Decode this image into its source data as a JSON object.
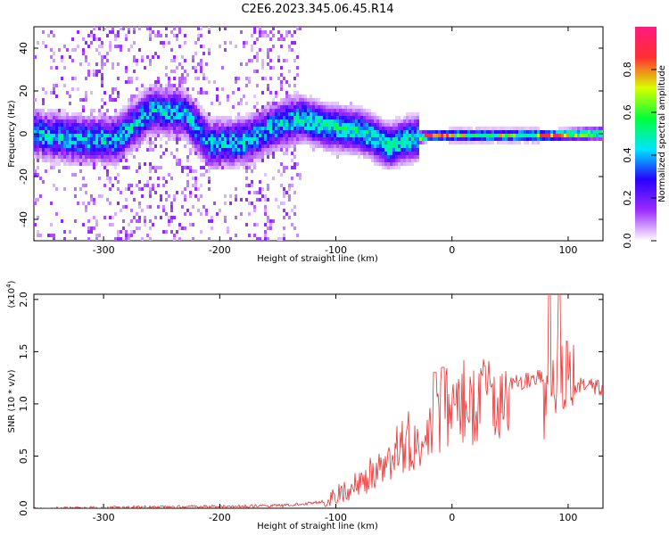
{
  "title": "C2E6.2023.345.06.45.R14",
  "chart_data": [
    {
      "type": "heatmap",
      "xlabel": "Height of straight line (km)",
      "ylabel": "Frequency (Hz)",
      "xlim": [
        -360,
        130
      ],
      "ylim": [
        -50,
        50
      ],
      "xticks": [
        "-300",
        "-200",
        "-100",
        "0",
        "100"
      ],
      "xtick_values": [
        -300,
        -200,
        -100,
        0,
        100
      ],
      "yticks": [
        "-40",
        "-20",
        "0",
        "20",
        "40"
      ],
      "ytick_values": [
        -40,
        -20,
        0,
        20,
        40
      ],
      "colorbar": {
        "label": "Normalized spectral amplitude",
        "range": [
          0,
          1
        ],
        "ticks": [
          "0.0",
          "0.2",
          "0.4",
          "0.6",
          "0.8"
        ],
        "tick_values": [
          0.0,
          0.2,
          0.4,
          0.6,
          0.8
        ],
        "colormap": [
          "#ffffff",
          "#9b2cff",
          "#2a00ff",
          "#00e5ff",
          "#00ff3c",
          "#d8ff00",
          "#ff2f2f",
          "#ff1a80"
        ]
      },
      "ridge": [
        {
          "x": -355,
          "f": 0
        },
        {
          "x": -320,
          "f": -2
        },
        {
          "x": -290,
          "f": -2
        },
        {
          "x": -260,
          "f": 12
        },
        {
          "x": -230,
          "f": 10
        },
        {
          "x": -210,
          "f": -4
        },
        {
          "x": -180,
          "f": -3
        },
        {
          "x": -150,
          "f": 5
        },
        {
          "x": -130,
          "f": 8
        },
        {
          "x": -110,
          "f": 4
        },
        {
          "x": -80,
          "f": 2
        },
        {
          "x": -55,
          "f": -5
        },
        {
          "x": -40,
          "f": -2
        },
        {
          "x": -20,
          "f": 0
        },
        {
          "x": 0,
          "f": 0
        },
        {
          "x": 50,
          "f": 0
        },
        {
          "x": 80,
          "f": 0
        },
        {
          "x": 130,
          "f": 1
        }
      ]
    },
    {
      "type": "line",
      "xlabel": "Height of straight line (km)",
      "ylabel": "SNR (10 * v/v)",
      "y_multiplier": "(x10",
      "y_multiplier_exp": "4",
      "y_multiplier_close": ")",
      "xlim": [
        -360,
        130
      ],
      "ylim": [
        0,
        2.05
      ],
      "xticks": [
        "-300",
        "-200",
        "-100",
        "0",
        "100"
      ],
      "xtick_values": [
        -300,
        -200,
        -100,
        0,
        100
      ],
      "yticks": [
        "0.0",
        "0.5",
        "1.0",
        "1.5",
        "2.0"
      ],
      "ytick_values": [
        0.0,
        0.5,
        1.0,
        1.5,
        2.0
      ],
      "color": "#e8302f",
      "envelope": [
        {
          "x": -360,
          "y": 0.0
        },
        {
          "x": -300,
          "y": 0.01
        },
        {
          "x": -200,
          "y": 0.02
        },
        {
          "x": -140,
          "y": 0.03
        },
        {
          "x": -110,
          "y": 0.07
        },
        {
          "x": -90,
          "y": 0.18
        },
        {
          "x": -70,
          "y": 0.32
        },
        {
          "x": -50,
          "y": 0.5
        },
        {
          "x": -30,
          "y": 0.7
        },
        {
          "x": -10,
          "y": 0.85
        },
        {
          "x": 10,
          "y": 1.0
        },
        {
          "x": 30,
          "y": 1.12
        },
        {
          "x": 50,
          "y": 1.2
        },
        {
          "x": 65,
          "y": 1.24
        },
        {
          "x": 80,
          "y": 1.28
        },
        {
          "x": 90,
          "y": 1.1
        },
        {
          "x": 100,
          "y": 1.0
        },
        {
          "x": 110,
          "y": 1.2
        },
        {
          "x": 130,
          "y": 1.17
        }
      ],
      "peaks": [
        {
          "x": -15,
          "y": 1.3
        },
        {
          "x": -8,
          "y": 1.35
        },
        {
          "x": 84,
          "y": 2.05
        },
        {
          "x": 92,
          "y": 2.05
        },
        {
          "x": 100,
          "y": 1.6
        }
      ]
    }
  ]
}
